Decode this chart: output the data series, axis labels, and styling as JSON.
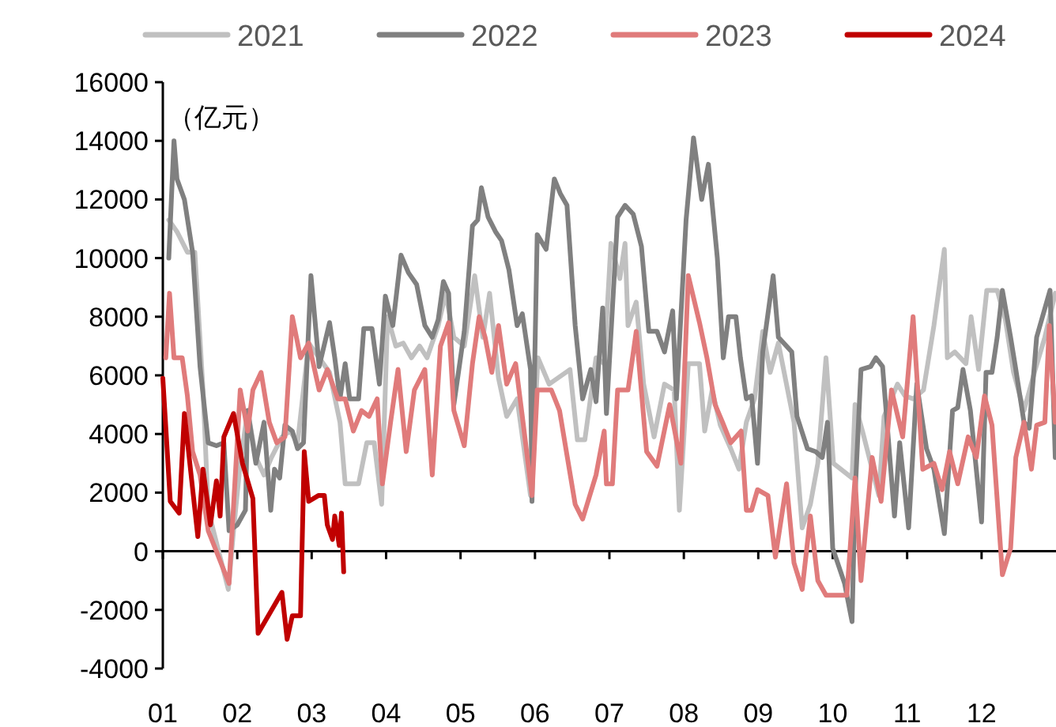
{
  "chart_data": {
    "type": "line",
    "legend": "top",
    "line_style": "solid",
    "annotations": [
      "（亿元）"
    ],
    "xlim": [
      1,
      13
    ],
    "xticks": [
      {
        "value": 1,
        "label": "01"
      },
      {
        "value": 2,
        "label": "02"
      },
      {
        "value": 3,
        "label": "03"
      },
      {
        "value": 4,
        "label": "04"
      },
      {
        "value": 5,
        "label": "05"
      },
      {
        "value": 6,
        "label": "06"
      },
      {
        "value": 7,
        "label": "07"
      },
      {
        "value": 8,
        "label": "08"
      },
      {
        "value": 9,
        "label": "09"
      },
      {
        "value": 10,
        "label": "10"
      },
      {
        "value": 11,
        "label": "11"
      },
      {
        "value": 12,
        "label": "12"
      }
    ],
    "ylim": [
      -4000,
      16000
    ],
    "yticks": [
      -4000,
      -2000,
      0,
      2000,
      4000,
      6000,
      8000,
      10000,
      12000,
      14000,
      16000
    ],
    "series": [
      {
        "name": "2021",
        "color": "#c0c0c0",
        "x": [
          1.08,
          1.19,
          1.33,
          1.43,
          1.54,
          1.61,
          1.72,
          1.88,
          1.95,
          2.04,
          2.14,
          2.25,
          2.36,
          2.46,
          2.6,
          2.71,
          2.81,
          2.96,
          3.1,
          3.24,
          3.38,
          3.45,
          3.63,
          3.74,
          3.84,
          3.94,
          4.02,
          4.13,
          4.23,
          4.34,
          4.45,
          4.55,
          4.7,
          4.8,
          4.91,
          5.05,
          5.19,
          5.3,
          5.39,
          5.51,
          5.62,
          5.76,
          5.94,
          6.04,
          6.19,
          6.47,
          6.57,
          6.67,
          6.82,
          6.93,
          7.02,
          7.14,
          7.21,
          7.25,
          7.36,
          7.46,
          7.6,
          7.74,
          7.87,
          7.94,
          8.06,
          8.21,
          8.28,
          8.38,
          8.49,
          8.63,
          8.74,
          8.84,
          8.95,
          9.06,
          9.16,
          9.27,
          9.48,
          9.59,
          9.7,
          9.8,
          9.91,
          10.01,
          10.26,
          10.3,
          10.4,
          10.62,
          10.69,
          10.87,
          10.97,
          11.08,
          11.22,
          11.36,
          11.5,
          11.54,
          11.64,
          11.79,
          11.86,
          11.96,
          12.07,
          12.21,
          12.32,
          12.43,
          12.57,
          12.71,
          12.85,
          12.99
        ],
        "values": [
          11300,
          10900,
          10200,
          10200,
          5500,
          1400,
          300,
          -1300,
          700,
          3000,
          4800,
          3200,
          2600,
          3200,
          3900,
          4100,
          3700,
          7100,
          6600,
          6100,
          4400,
          2300,
          2300,
          3700,
          3700,
          1600,
          8000,
          7000,
          7100,
          6600,
          7000,
          6600,
          7700,
          8800,
          7300,
          7000,
          9400,
          7300,
          8800,
          5900,
          4600,
          5200,
          1900,
          6600,
          5700,
          6200,
          3800,
          3800,
          6600,
          6400,
          10500,
          9300,
          10500,
          7700,
          8500,
          5700,
          3900,
          5700,
          5500,
          1400,
          6400,
          6400,
          4100,
          5500,
          4300,
          3500,
          2800,
          4400,
          5200,
          7500,
          6100,
          7100,
          4400,
          800,
          1600,
          3000,
          6600,
          3000,
          2500,
          5000,
          4100,
          1900,
          4600,
          5700,
          5300,
          5200,
          5500,
          7700,
          10300,
          6600,
          6800,
          6400,
          8000,
          6200,
          8900,
          8900,
          7900,
          6100,
          4800,
          6100,
          7300,
          8800
        ]
      },
      {
        "name": "2022",
        "color": "#808080",
        "x": [
          1.08,
          1.15,
          1.19,
          1.29,
          1.4,
          1.5,
          1.61,
          1.72,
          1.82,
          1.89,
          2.0,
          2.11,
          2.14,
          2.25,
          2.36,
          2.45,
          2.5,
          2.57,
          2.64,
          2.74,
          2.81,
          2.89,
          2.99,
          3.1,
          3.24,
          3.31,
          3.38,
          3.45,
          3.51,
          3.63,
          3.7,
          3.81,
          3.91,
          3.99,
          4.09,
          4.2,
          4.3,
          4.41,
          4.52,
          4.62,
          4.7,
          4.77,
          4.84,
          4.91,
          5.05,
          5.16,
          5.23,
          5.28,
          5.37,
          5.47,
          5.55,
          5.65,
          5.76,
          5.83,
          5.94,
          5.96,
          6.03,
          6.15,
          6.26,
          6.34,
          6.43,
          6.54,
          6.64,
          6.75,
          6.82,
          6.91,
          6.96,
          7.11,
          7.21,
          7.32,
          7.43,
          7.53,
          7.64,
          7.74,
          7.85,
          7.9,
          8.03,
          8.13,
          8.24,
          8.33,
          8.45,
          8.53,
          8.6,
          8.7,
          8.76,
          8.84,
          8.91,
          8.99,
          9.06,
          9.2,
          9.27,
          9.45,
          9.52,
          9.66,
          9.77,
          9.86,
          9.93,
          10.0,
          10.16,
          10.26,
          10.3,
          10.38,
          10.51,
          10.58,
          10.67,
          10.83,
          10.9,
          11.02,
          11.13,
          11.26,
          11.36,
          11.5,
          11.61,
          11.68,
          11.75,
          11.85,
          12.0,
          12.06,
          12.14,
          12.21,
          12.28,
          12.39,
          12.46,
          12.57,
          12.64,
          12.74,
          12.92,
          12.99
        ],
        "values": [
          10000,
          14000,
          12700,
          12000,
          10200,
          6300,
          3700,
          3600,
          3700,
          700,
          900,
          1400,
          4800,
          3000,
          4400,
          1400,
          2800,
          2500,
          4300,
          4100,
          3500,
          3700,
          9400,
          6300,
          7800,
          6600,
          5200,
          6400,
          5200,
          5200,
          7600,
          7600,
          5700,
          8700,
          7700,
          10100,
          9500,
          9100,
          7700,
          7300,
          7900,
          9200,
          8800,
          5000,
          7500,
          11100,
          11300,
          12400,
          11400,
          10900,
          10600,
          9600,
          7700,
          8100,
          6200,
          1700,
          10800,
          10300,
          12700,
          12200,
          11800,
          7700,
          5200,
          6200,
          5100,
          8300,
          4700,
          11400,
          11800,
          11500,
          10400,
          7500,
          7500,
          6800,
          8200,
          5200,
          11300,
          14100,
          12000,
          13200,
          10000,
          6600,
          8000,
          8000,
          6600,
          5200,
          5300,
          3000,
          6800,
          9400,
          7300,
          6800,
          4600,
          3500,
          3400,
          3200,
          4400,
          100,
          -1100,
          -2400,
          1900,
          6200,
          6300,
          6600,
          6300,
          1200,
          3700,
          800,
          5700,
          3500,
          2800,
          600,
          4800,
          4900,
          6200,
          4800,
          1000,
          6100,
          6100,
          7300,
          8900,
          7300,
          6200,
          4400,
          4200,
          7300,
          8900,
          3200
        ]
      },
      {
        "name": "2023",
        "color": "#e07b7b",
        "x": [
          1.04,
          1.09,
          1.15,
          1.26,
          1.33,
          1.4,
          1.5,
          1.61,
          1.75,
          1.89,
          2.04,
          2.14,
          2.21,
          2.32,
          2.43,
          2.53,
          2.64,
          2.74,
          2.85,
          2.96,
          3.1,
          3.21,
          3.35,
          3.45,
          3.56,
          3.67,
          3.77,
          3.88,
          3.95,
          4.06,
          4.16,
          4.27,
          4.38,
          4.52,
          4.62,
          4.73,
          4.84,
          4.91,
          5.05,
          5.16,
          5.25,
          5.33,
          5.42,
          5.51,
          5.62,
          5.74,
          5.83,
          5.96,
          6.03,
          6.22,
          6.33,
          6.54,
          6.64,
          6.82,
          6.93,
          6.96,
          7.04,
          7.11,
          7.25,
          7.36,
          7.5,
          7.64,
          7.81,
          7.96,
          8.06,
          8.21,
          8.31,
          8.42,
          8.52,
          8.63,
          8.77,
          8.84,
          8.91,
          8.99,
          9.13,
          9.23,
          9.38,
          9.48,
          9.59,
          9.7,
          9.8,
          9.91,
          10.19,
          10.3,
          10.38,
          10.53,
          10.65,
          10.79,
          10.94,
          11.08,
          11.21,
          11.36,
          11.47,
          11.57,
          11.68,
          11.82,
          11.93,
          12.04,
          12.14,
          12.28,
          12.39,
          12.46,
          12.57,
          12.67,
          12.74,
          12.85,
          12.91,
          12.99
        ],
        "values": [
          6600,
          8800,
          6600,
          6600,
          5300,
          3400,
          2600,
          700,
          -200,
          -1100,
          5500,
          4100,
          5500,
          6100,
          4400,
          3700,
          3900,
          8000,
          6600,
          7100,
          5500,
          6200,
          5200,
          5200,
          4100,
          4800,
          4600,
          5200,
          2300,
          4400,
          6200,
          3400,
          5500,
          6200,
          2600,
          7000,
          7800,
          4800,
          3600,
          6400,
          8000,
          7300,
          6100,
          7700,
          5700,
          6400,
          4600,
          1900,
          5500,
          5500,
          4800,
          1600,
          1100,
          2600,
          4100,
          2300,
          2300,
          5500,
          5500,
          7500,
          3400,
          2900,
          5000,
          3000,
          9400,
          7800,
          6600,
          5000,
          4400,
          3700,
          4100,
          1400,
          1400,
          2100,
          1900,
          -200,
          2300,
          -400,
          -1300,
          1200,
          -1000,
          -1500,
          -1500,
          2500,
          -1000,
          3200,
          1700,
          5500,
          3900,
          8000,
          2800,
          3000,
          2100,
          3400,
          2300,
          3900,
          3200,
          5300,
          4300,
          -800,
          100,
          3200,
          4400,
          2800,
          4300,
          4400,
          7700,
          4400
        ]
      },
      {
        "name": "2024",
        "color": "#c00000",
        "x": [
          1.0,
          1.1,
          1.22,
          1.29,
          1.47,
          1.54,
          1.64,
          1.72,
          1.77,
          1.82,
          1.95,
          2.07,
          2.21,
          2.28,
          2.6,
          2.67,
          2.74,
          2.85,
          2.9,
          2.96,
          3.09,
          3.17,
          3.21,
          3.28,
          3.31,
          3.37,
          3.4,
          3.43
        ],
        "values": [
          5900,
          1700,
          1300,
          4700,
          500,
          2800,
          900,
          2400,
          1200,
          3900,
          4700,
          3000,
          1800,
          -2800,
          -1400,
          -3000,
          -2200,
          -2200,
          3400,
          1700,
          1900,
          1900,
          900,
          400,
          1200,
          200,
          1300,
          -700
        ]
      }
    ]
  }
}
